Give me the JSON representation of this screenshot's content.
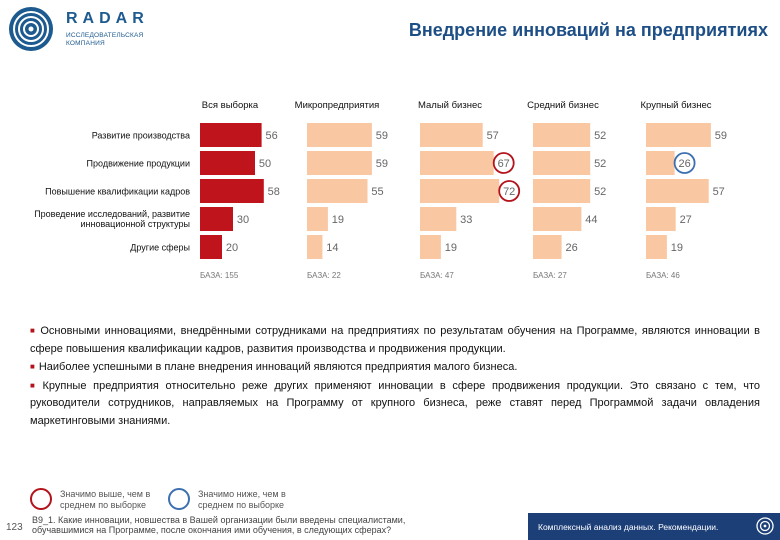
{
  "header": {
    "logo_title": "RADAR",
    "logo_subtitle_1": "ИССЛЕДОВАТЕЛЬСКАЯ",
    "logo_subtitle_2": "КОМПАНИЯ",
    "page_title": "Внедрение инноваций на предприятиях"
  },
  "chart_data": {
    "type": "bar",
    "orientation": "horizontal",
    "categories": [
      "Развитие производства",
      "Продвижение продукции",
      "Повышение квалификации кадров",
      "Проведение исследований, развитие инновационной структуры",
      "Другие сферы"
    ],
    "category_lines": [
      [
        "Развитие производства"
      ],
      [
        "Продвижение продукции"
      ],
      [
        "Повышение квалификации кадров"
      ],
      [
        "Проведение исследований, развитие",
        "инновационной структуры"
      ],
      [
        "Другие сферы"
      ]
    ],
    "series": [
      {
        "name": "Вся выборка",
        "values": [
          56,
          50,
          58,
          30,
          20
        ],
        "base": "БАЗА: 155",
        "color": "#c0141c"
      },
      {
        "name": "Микропредприятия",
        "values": [
          59,
          59,
          55,
          19,
          14
        ],
        "base": "БАЗА: 22",
        "color": "#f9c7a2"
      },
      {
        "name": "Малый бизнес",
        "values": [
          57,
          67,
          72,
          33,
          19
        ],
        "base": "БАЗА: 47",
        "color": "#f9c7a2"
      },
      {
        "name": "Средний бизнес",
        "values": [
          52,
          52,
          52,
          44,
          26
        ],
        "base": "БАЗА: 27",
        "color": "#f9c7a2"
      },
      {
        "name": "Крупный бизнес",
        "values": [
          59,
          26,
          57,
          27,
          19
        ],
        "base": "БАЗА: 46",
        "color": "#f9c7a2"
      }
    ],
    "highlights": [
      {
        "series": 2,
        "category": 1,
        "kind": "above"
      },
      {
        "series": 2,
        "category": 2,
        "kind": "above"
      },
      {
        "series": 4,
        "category": 1,
        "kind": "below"
      }
    ],
    "xlim": [
      0,
      100
    ],
    "unit": "%"
  },
  "findings": [
    "Основными инновациями, внедрёнными сотрудниками на предприятиях по результатам обучения на Программе, являются инновации в сфере повышения квалификации кадров, развития производства и продвижения продукции.",
    "Наиболее успешными в плане внедрения инноваций являются предприятия малого бизнеса.",
    "Крупные предприятия относительно реже других применяют инновации в сфере продвижения продукции. Это связано с тем, что руководители сотрудников, направляемых на Программу от крупного бизнеса, реже ставят перед Программой задачи овладения маркетинговыми знаниями."
  ],
  "legend": {
    "above_line1": "Значимо выше, чем в",
    "above_line2": "среднем по выборке",
    "below_line1": "Значимо ниже, чем в",
    "below_line2": "среднем по выборке",
    "above_color": "#b3131b",
    "below_color": "#3c70b0"
  },
  "footer": {
    "page_number": "123",
    "question_line1": "B9_1. Какие инновации, новшества в Вашей организации были введены специалистами,",
    "question_line2": "обучавшимися на Программе, после окончания ими обучения, в следующих сферах?",
    "caption": "Комплексный анализ данных. Рекомендации."
  }
}
